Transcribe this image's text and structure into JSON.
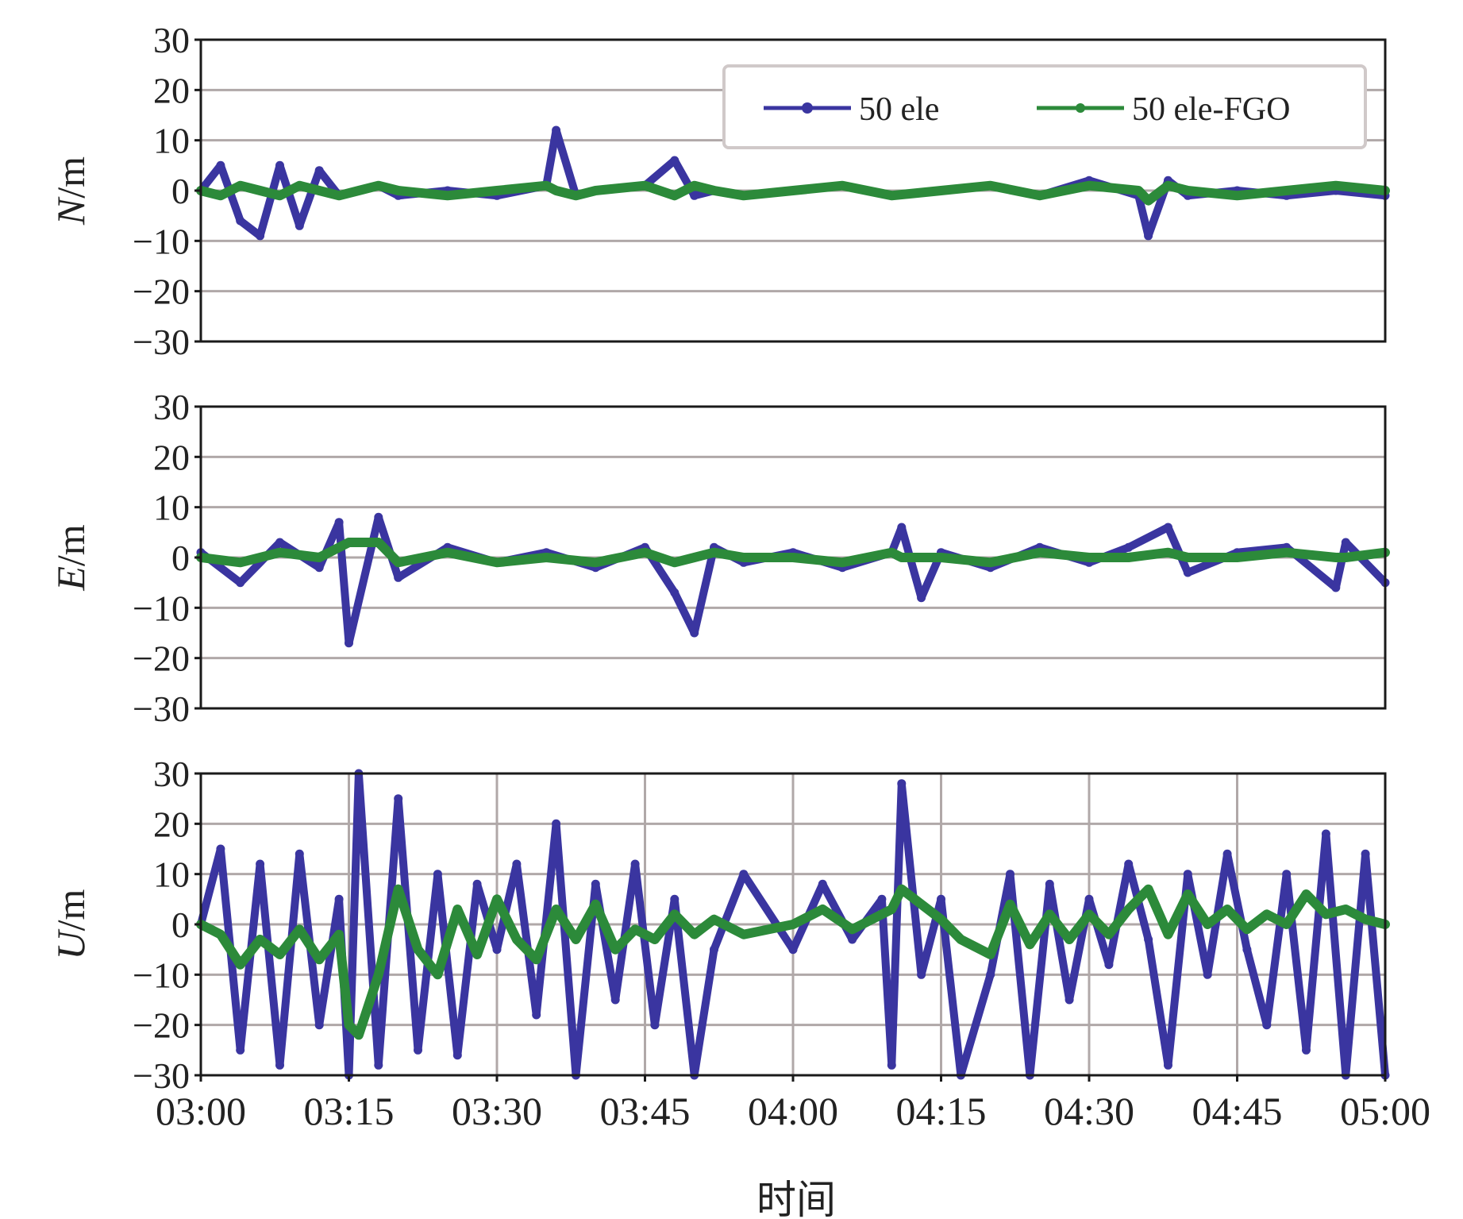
{
  "figure": {
    "xlabel": "时间",
    "x_tick_labels": [
      "03:00",
      "03:15",
      "03:30",
      "03:45",
      "04:00",
      "04:15",
      "04:30",
      "04:45",
      "05:00"
    ],
    "y_tick_labels": [
      "30",
      "20",
      "10",
      "0",
      "−10",
      "−20",
      "−30"
    ]
  },
  "legend": {
    "items": [
      {
        "label": "50 ele",
        "color": "#3a35a0"
      },
      {
        "label": "50 ele-FGO",
        "color": "#2c8a3a"
      }
    ]
  },
  "colors": {
    "ele": "#3a35a0",
    "fgo": "#2c8a3a",
    "grid": "#b0a8a8",
    "frame": "#1a1a1a"
  },
  "chart_data": [
    {
      "type": "line",
      "panel": "N",
      "ylabel_var": "N",
      "ylabel_unit": "/m",
      "xlabel": "",
      "xlim": [
        "03:00",
        "05:00"
      ],
      "ylim": [
        -30,
        30
      ],
      "yticks": [
        30,
        20,
        10,
        0,
        -10,
        -20,
        -30
      ],
      "grid": "horizontal",
      "legend_position": "top-right",
      "x": [
        "03:00",
        "03:02",
        "03:04",
        "03:06",
        "03:08",
        "03:10",
        "03:12",
        "03:14",
        "03:16",
        "03:18",
        "03:20",
        "03:25",
        "03:30",
        "03:35",
        "03:36",
        "03:38",
        "03:40",
        "03:45",
        "03:48",
        "03:50",
        "03:52",
        "03:55",
        "04:00",
        "04:05",
        "04:10",
        "04:15",
        "04:20",
        "04:25",
        "04:30",
        "04:35",
        "04:36",
        "04:38",
        "04:40",
        "04:45",
        "04:50",
        "04:55",
        "05:00"
      ],
      "series": [
        {
          "name": "50 ele",
          "values": [
            0,
            5,
            -6,
            -9,
            5,
            -7,
            4,
            -1,
            0,
            1,
            -1,
            0,
            -1,
            1,
            12,
            -1,
            0,
            1,
            6,
            -1,
            0,
            -1,
            0,
            1,
            -1,
            0,
            1,
            -1,
            2,
            -1,
            -9,
            2,
            -1,
            0,
            -1,
            0,
            -1
          ]
        },
        {
          "name": "50 ele-FGO",
          "values": [
            0,
            -1,
            1,
            0,
            -1,
            1,
            0,
            -1,
            0,
            1,
            0,
            -1,
            0,
            1,
            0,
            -1,
            0,
            1,
            -1,
            1,
            0,
            -1,
            0,
            1,
            -1,
            0,
            1,
            -1,
            1,
            0,
            -2,
            1,
            0,
            -1,
            0,
            1,
            0
          ]
        }
      ]
    },
    {
      "type": "line",
      "panel": "E",
      "ylabel_var": "E",
      "ylabel_unit": "/m",
      "xlabel": "",
      "xlim": [
        "03:00",
        "05:00"
      ],
      "ylim": [
        -30,
        30
      ],
      "yticks": [
        30,
        20,
        10,
        0,
        -10,
        -20,
        -30
      ],
      "grid": "horizontal",
      "x": [
        "03:00",
        "03:04",
        "03:08",
        "03:12",
        "03:14",
        "03:15",
        "03:18",
        "03:20",
        "03:25",
        "03:30",
        "03:35",
        "03:40",
        "03:45",
        "03:48",
        "03:50",
        "03:52",
        "03:55",
        "04:00",
        "04:05",
        "04:10",
        "04:11",
        "04:13",
        "04:15",
        "04:20",
        "04:25",
        "04:30",
        "04:34",
        "04:38",
        "04:40",
        "04:45",
        "04:50",
        "04:55",
        "04:56",
        "05:00"
      ],
      "series": [
        {
          "name": "50 ele",
          "values": [
            1,
            -5,
            3,
            -2,
            7,
            -17,
            8,
            -4,
            2,
            -1,
            1,
            -2,
            2,
            -7,
            -15,
            2,
            -1,
            1,
            -2,
            1,
            6,
            -8,
            1,
            -2,
            2,
            -1,
            2,
            6,
            -3,
            1,
            2,
            -6,
            3,
            -5
          ]
        },
        {
          "name": "50 ele-FGO",
          "values": [
            0,
            -1,
            1,
            0,
            2,
            3,
            3,
            -1,
            1,
            -1,
            0,
            -1,
            1,
            -1,
            0,
            1,
            0,
            0,
            -1,
            1,
            0,
            0,
            0,
            -1,
            1,
            0,
            0,
            1,
            0,
            0,
            1,
            0,
            0,
            1
          ]
        }
      ]
    },
    {
      "type": "line",
      "panel": "U",
      "ylabel_var": "U",
      "ylabel_unit": "/m",
      "xlabel": "时间",
      "xlim": [
        "03:00",
        "05:00"
      ],
      "ylim": [
        -30,
        30
      ],
      "yticks": [
        30,
        20,
        10,
        0,
        -10,
        -20,
        -30
      ],
      "grid": "both",
      "x": [
        "03:00",
        "03:02",
        "03:04",
        "03:06",
        "03:08",
        "03:10",
        "03:12",
        "03:14",
        "03:15",
        "03:16",
        "03:18",
        "03:20",
        "03:22",
        "03:24",
        "03:26",
        "03:28",
        "03:30",
        "03:32",
        "03:34",
        "03:36",
        "03:38",
        "03:40",
        "03:42",
        "03:44",
        "03:46",
        "03:48",
        "03:50",
        "03:52",
        "03:55",
        "04:00",
        "04:03",
        "04:06",
        "04:09",
        "04:10",
        "04:11",
        "04:13",
        "04:15",
        "04:17",
        "04:20",
        "04:22",
        "04:24",
        "04:26",
        "04:28",
        "04:30",
        "04:32",
        "04:34",
        "04:36",
        "04:38",
        "04:40",
        "04:42",
        "04:44",
        "04:46",
        "04:48",
        "04:50",
        "04:52",
        "04:54",
        "04:56",
        "04:58",
        "05:00"
      ],
      "series": [
        {
          "name": "50 ele",
          "values": [
            0,
            15,
            -25,
            12,
            -28,
            14,
            -20,
            5,
            -30,
            30,
            -28,
            25,
            -25,
            10,
            -26,
            8,
            -5,
            12,
            -18,
            20,
            -30,
            8,
            -15,
            12,
            -20,
            5,
            -30,
            -5,
            10,
            -5,
            8,
            -3,
            5,
            -28,
            28,
            -10,
            5,
            -30,
            -10,
            10,
            -30,
            8,
            -15,
            5,
            -8,
            12,
            -3,
            -28,
            10,
            -10,
            14,
            -5,
            -20,
            10,
            -25,
            18,
            -30,
            14,
            -30
          ]
        },
        {
          "name": "50 ele-FGO",
          "values": [
            0,
            -2,
            -8,
            -3,
            -6,
            -1,
            -7,
            -2,
            -20,
            -22,
            -10,
            7,
            -5,
            -10,
            3,
            -6,
            5,
            -3,
            -7,
            3,
            -3,
            4,
            -5,
            -1,
            -3,
            2,
            -2,
            1,
            -2,
            0,
            3,
            -1,
            2,
            3,
            7,
            4,
            1,
            -3,
            -6,
            4,
            -4,
            2,
            -3,
            2,
            -2,
            3,
            7,
            -2,
            6,
            0,
            3,
            -1,
            2,
            0,
            6,
            2,
            3,
            1,
            0
          ]
        }
      ]
    }
  ]
}
